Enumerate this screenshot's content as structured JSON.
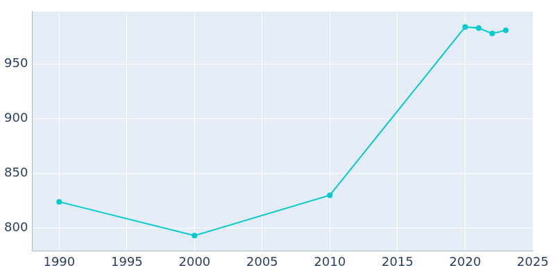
{
  "chart_data": {
    "type": "line",
    "x": [
      1990,
      2000,
      2010,
      2020,
      2021,
      2022,
      2023
    ],
    "values": [
      824,
      793,
      830,
      984,
      983,
      978,
      981
    ],
    "color": "#00cccc",
    "marker": "circle",
    "xlim": [
      1988,
      2025
    ],
    "xticks": [
      1990,
      1995,
      2000,
      2005,
      2010,
      2015,
      2020,
      2025
    ],
    "ylim": [
      779,
      998
    ],
    "yticks": [
      800,
      850,
      900,
      950
    ],
    "grid": true
  }
}
